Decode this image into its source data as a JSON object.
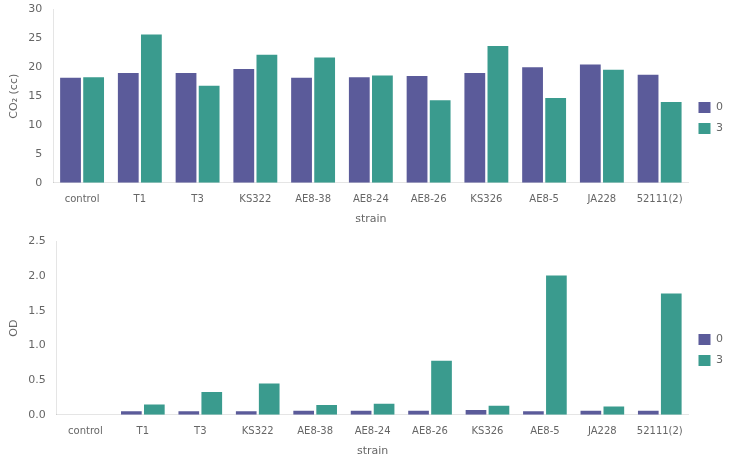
{
  "chart_data": [
    {
      "type": "bar",
      "categories": [
        "control",
        "T1",
        "T3",
        "KS322",
        "AE8-38",
        "AE8-24",
        "AE8-26",
        "KS326",
        "AE8-5",
        "JA228",
        "52111(2)"
      ],
      "series": [
        {
          "name": "0",
          "color": "#5b5b9a",
          "values": [
            18.2,
            19.0,
            19.0,
            19.7,
            18.2,
            18.3,
            18.5,
            19.0,
            20.0,
            20.5,
            18.7
          ]
        },
        {
          "name": "3",
          "color": "#3a9b8e",
          "values": [
            18.3,
            25.7,
            16.8,
            22.2,
            21.7,
            18.6,
            14.3,
            23.7,
            14.7,
            19.6,
            14.0
          ]
        }
      ],
      "ylabel": "CO₂ (cc)",
      "xlabel": "strain",
      "ylim": [
        0,
        30
      ],
      "yticks": [
        0,
        5,
        10,
        15,
        20,
        25,
        30
      ],
      "grid": false,
      "legend": "right"
    },
    {
      "type": "bar",
      "categories": [
        "control",
        "T1",
        "T3",
        "KS322",
        "AE8-38",
        "AE8-24",
        "AE8-26",
        "KS326",
        "AE8-5",
        "JA228",
        "52111(2)"
      ],
      "series": [
        {
          "name": "0",
          "color": "#5b5b9a",
          "values": [
            0.0,
            0.05,
            0.05,
            0.05,
            0.06,
            0.06,
            0.06,
            0.07,
            0.05,
            0.06,
            0.06
          ]
        },
        {
          "name": "3",
          "color": "#3a9b8e",
          "values": [
            0.0,
            0.15,
            0.33,
            0.45,
            0.14,
            0.16,
            0.78,
            0.13,
            2.01,
            0.12,
            1.75
          ]
        }
      ],
      "ylabel": "OD",
      "xlabel": "strain",
      "ylim": [
        0,
        2.5
      ],
      "yticks": [
        {
          "value": 0,
          "label": "0.0"
        },
        0.5,
        {
          "value": 1.0,
          "label": "1.0"
        },
        1.5,
        {
          "value": 2.0,
          "label": "2.0"
        },
        2.5
      ],
      "grid": false,
      "legend": "right"
    }
  ]
}
